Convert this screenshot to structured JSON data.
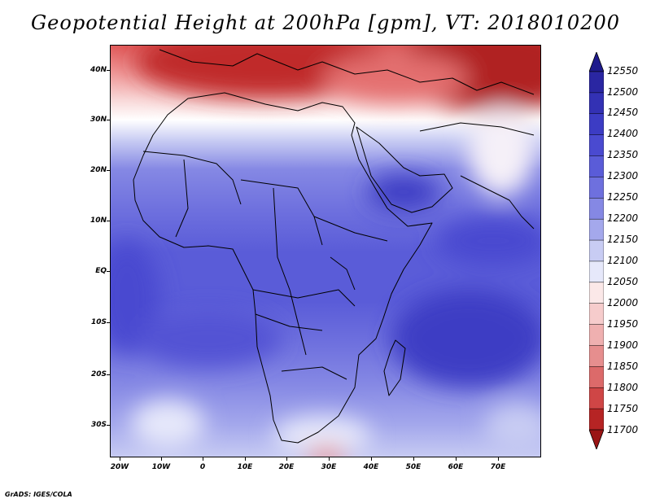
{
  "title": "Geopotential Height at 200hPa [gpm], VT: 2018010200",
  "credit": "GrADS: IGES/COLA",
  "latitude_labels": [
    "40N",
    "30N",
    "20N",
    "10N",
    "EQ",
    "10S",
    "20S",
    "30S"
  ],
  "longitude_labels": [
    "20W",
    "10W",
    "0",
    "10E",
    "20E",
    "30E",
    "40E",
    "50E",
    "60E",
    "70E"
  ],
  "colorbar": {
    "levels": [
      "12550",
      "12500",
      "12450",
      "12400",
      "12350",
      "12300",
      "12250",
      "12200",
      "12150",
      "12100",
      "12050",
      "12000",
      "11950",
      "11900",
      "11850",
      "11800",
      "11750",
      "11700"
    ],
    "colors": [
      "#1e1a8c",
      "#2a26a2",
      "#3331b4",
      "#3c3cc4",
      "#4a4ad0",
      "#5a5cd8",
      "#6e70de",
      "#8588e4",
      "#a4a8ec",
      "#c8ccf3",
      "#e6e8fa",
      "#fbe8e8",
      "#f6cccc",
      "#efb0b0",
      "#e68e8e",
      "#dc6a6a",
      "#cf4646",
      "#b62424",
      "#9a1414"
    ]
  },
  "legend_arrows": {
    "top_color": "#1e1a8c",
    "bottom_color": "#9a1414"
  }
}
